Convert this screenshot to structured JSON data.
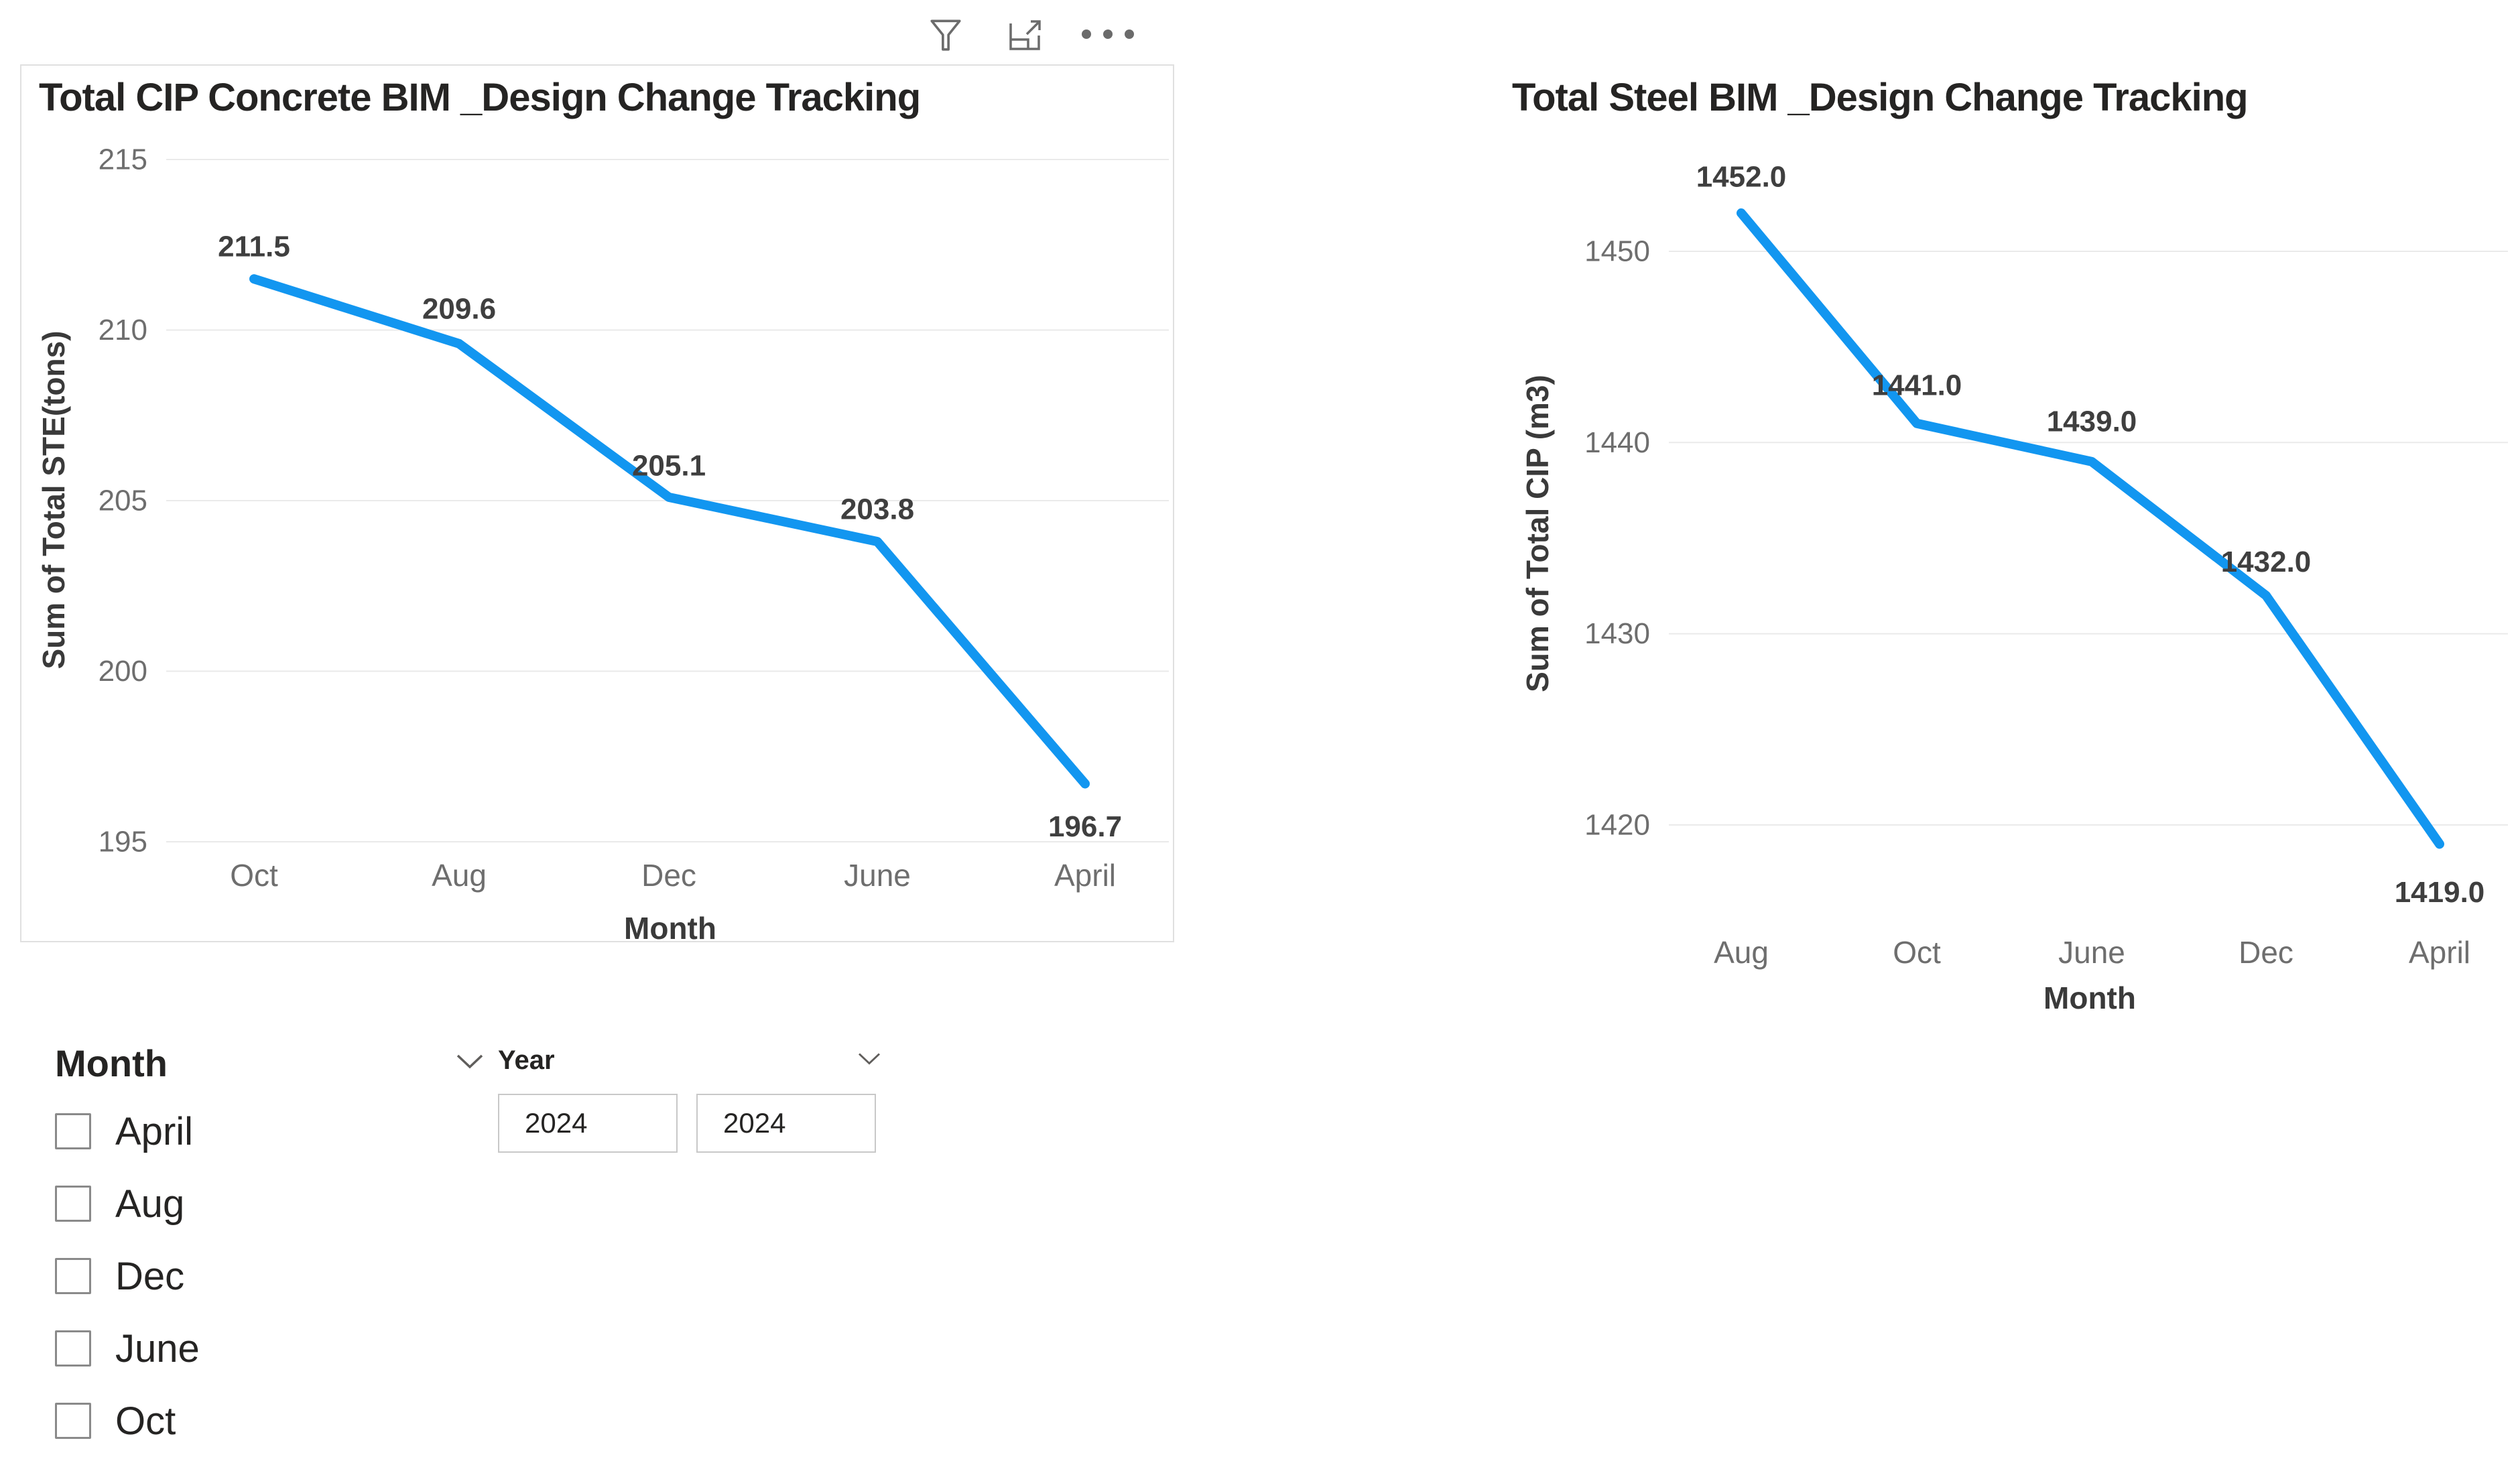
{
  "toolbar": {
    "icons": [
      {
        "name": "filter"
      },
      {
        "name": "focus-mode"
      },
      {
        "name": "more-options"
      }
    ]
  },
  "charts": [
    {
      "title": "Total CIP Concrete BIM _Design Change Tracking",
      "chart_data": {
        "type": "line",
        "categories": [
          "Oct",
          "Aug",
          "Dec",
          "June",
          "April"
        ],
        "values": [
          211.5,
          209.6,
          205.1,
          203.8,
          196.7
        ],
        "point_labels": [
          "211.5",
          "209.6",
          "205.1",
          "203.8",
          "196.7"
        ],
        "title": "Total CIP Concrete BIM _Design Change Tracking",
        "xlabel": "Month",
        "ylabel": "Sum of Total STE(tons)",
        "yticks": [
          215,
          210,
          205,
          200,
          195
        ],
        "ylim": [
          193.1,
          216.9
        ],
        "grid": true,
        "legend": false,
        "line_color": "#1296F0"
      }
    },
    {
      "title": "Total Steel BIM _Design Change Tracking",
      "chart_data": {
        "type": "line",
        "categories": [
          "Aug",
          "Oct",
          "June",
          "Dec",
          "April"
        ],
        "values": [
          1452.0,
          1441.0,
          1439.0,
          1432.0,
          1419.0
        ],
        "point_labels": [
          "1452.0",
          "1441.0",
          "1439.0",
          "1432.0",
          "1419.0"
        ],
        "title": "Total Steel BIM _Design Change Tracking",
        "xlabel": "Month",
        "ylabel": "Sum of Total CIP (m3)",
        "yticks": [
          1450,
          1440,
          1430,
          1420
        ],
        "ylim": [
          1413.5,
          1456.5
        ],
        "grid": true,
        "legend": false,
        "line_color": "#1296F0"
      }
    }
  ],
  "slicers": {
    "month": {
      "title": "Month",
      "items": [
        {
          "label": "April",
          "checked": false
        },
        {
          "label": "Aug",
          "checked": false
        },
        {
          "label": "Dec",
          "checked": false
        },
        {
          "label": "June",
          "checked": false
        },
        {
          "label": "Oct",
          "checked": false
        }
      ]
    },
    "year": {
      "title": "Year",
      "from_value": "2024",
      "to_value": "2024"
    }
  },
  "colors": {
    "line": "#1296F0",
    "grid": "#EAEAEA",
    "tick_text": "#6E6E6E",
    "data_label": "#3F3F3F",
    "axis_title": "#3A3A3A",
    "chart_title": "#252423",
    "panel_border": "#E0E0E0",
    "icon": "#6B6B6B",
    "checkbox_border": "#8A8A8A",
    "input_border": "#C8C8C8"
  }
}
